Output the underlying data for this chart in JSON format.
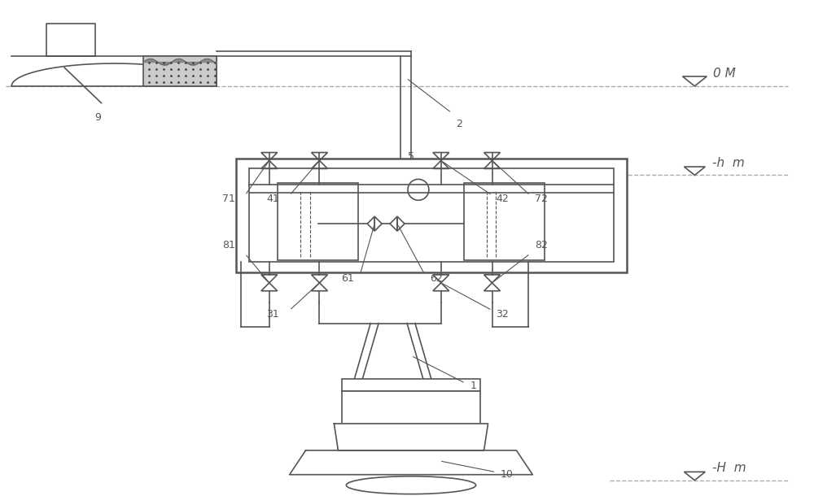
{
  "bg_color": "#ffffff",
  "line_color": "#555555",
  "line_width": 1.2,
  "thick_line": 1.8,
  "fig_width": 10.0,
  "fig_height": 6.1,
  "labels": {
    "0M": "0 M",
    "hm": "-h  m",
    "Hm": "-H  m",
    "label_1": "1",
    "label_2": "2",
    "label_5": "5",
    "label_9": "9",
    "label_10": "10",
    "label_31": "31",
    "label_32": "32",
    "label_41": "41",
    "label_42": "42",
    "label_61": "61",
    "label_62": "62",
    "label_71": "71",
    "label_72": "72",
    "label_81": "81",
    "label_82": "82"
  }
}
